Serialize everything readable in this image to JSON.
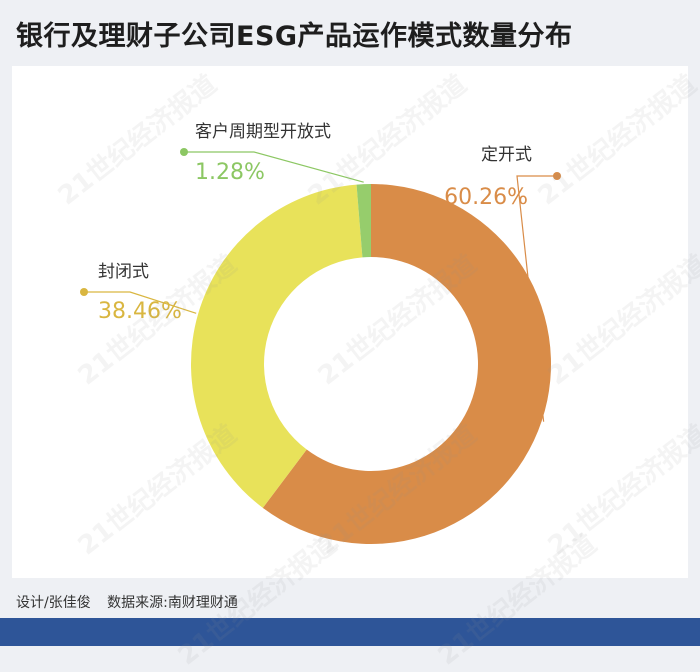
{
  "page": {
    "title": "银行及理财子公司ESG产品运作模式数量分布",
    "footer": {
      "designer": "设计/张佳俊",
      "source": "数据来源:南财理财通"
    },
    "watermark": "21世纪经济报道"
  },
  "chart_data": {
    "type": "pie",
    "variant": "donut",
    "series": [
      {
        "name": "定开式",
        "value": 60.26,
        "label": "60.26%",
        "color": "#d98c48"
      },
      {
        "name": "封闭式",
        "value": 38.46,
        "label": "38.46%",
        "color": "#e8e25a"
      },
      {
        "name": "客户周期型开放式",
        "value": 1.28,
        "label": "1.28%",
        "color": "#96cd6c"
      }
    ],
    "label_colors": {
      "定开式": "#d98c48",
      "封闭式": "#d9b640",
      "客户周期型开放式": "#8cc763"
    }
  }
}
